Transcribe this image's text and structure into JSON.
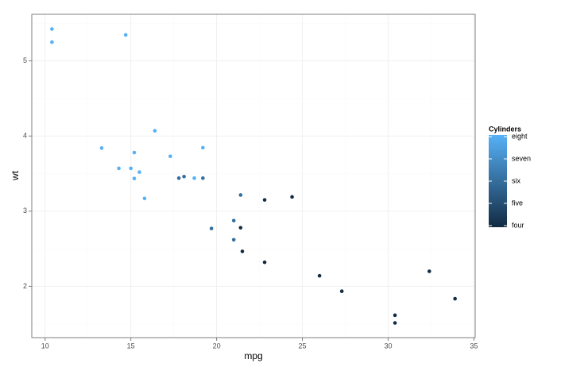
{
  "chart_data": {
    "type": "scatter",
    "x_label": "mpg",
    "y_label": "wt",
    "x": [
      21.0,
      21.0,
      22.8,
      21.4,
      18.7,
      18.1,
      14.3,
      24.4,
      22.8,
      19.2,
      17.8,
      16.4,
      17.3,
      15.2,
      10.4,
      10.4,
      14.7,
      32.4,
      30.4,
      33.9,
      21.5,
      15.5,
      15.2,
      13.3,
      19.2,
      27.3,
      26.0,
      30.4,
      15.8,
      19.7,
      15.0,
      21.4
    ],
    "series": [
      {
        "values": [
          2.62,
          2.875,
          2.32,
          3.215,
          3.44,
          3.46,
          3.57,
          3.19,
          3.15,
          3.44,
          3.44,
          4.07,
          3.73,
          3.78,
          5.25,
          5.424,
          5.345,
          2.2,
          1.615,
          1.835,
          2.465,
          3.52,
          3.435,
          3.84,
          3.845,
          1.935,
          2.14,
          1.513,
          3.17,
          2.77,
          3.57,
          2.78
        ],
        "color_values": [
          6,
          6,
          4,
          6,
          8,
          6,
          8,
          4,
          4,
          6,
          6,
          8,
          8,
          8,
          8,
          8,
          8,
          4,
          4,
          4,
          4,
          8,
          8,
          8,
          8,
          4,
          4,
          4,
          8,
          6,
          8,
          4
        ]
      }
    ],
    "xlim": [
      9.225,
      35.075
    ],
    "ylim": [
      1.31745,
      5.61955
    ],
    "xticks": [
      10,
      15,
      20,
      25,
      30,
      35
    ],
    "yticks": [
      2,
      3,
      4,
      5
    ],
    "xminorticks": [
      12.5,
      17.5,
      22.5,
      27.5,
      32.5
    ],
    "yminorticks": [
      1.5,
      2.5,
      3.5,
      4.5,
      5.5
    ],
    "grid": true,
    "legend": {
      "title": "Cylinders",
      "position": "right",
      "color_low": "#132B43",
      "color_high": "#56B1F7",
      "color_lim": [
        4,
        8
      ],
      "ticks": [
        {
          "value": 4,
          "label": "four"
        },
        {
          "value": 5,
          "label": "five"
        },
        {
          "value": 6,
          "label": "six"
        },
        {
          "value": 7,
          "label": "seven"
        },
        {
          "value": 8,
          "label": "eight"
        }
      ]
    }
  }
}
